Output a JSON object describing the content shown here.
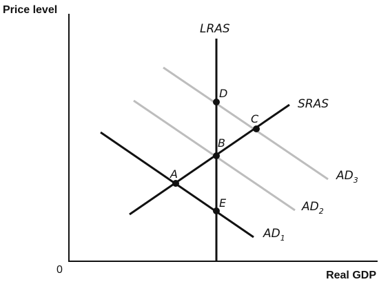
{
  "axes": {
    "y_title": "Price level",
    "x_title": "Real GDP",
    "origin": "0"
  },
  "curves": {
    "lras": {
      "label": "LRAS"
    },
    "sras": {
      "label": "SRAS"
    },
    "ad1": {
      "label": "AD",
      "subscript": "1"
    },
    "ad2": {
      "label": "AD",
      "subscript": "2"
    },
    "ad3": {
      "label": "AD",
      "subscript": "3"
    }
  },
  "points": {
    "a": "A",
    "b": "B",
    "c": "C",
    "d": "D",
    "e": "E"
  },
  "colors": {
    "ink": "#111111",
    "shifted_ad": "#bdbdbd"
  }
}
